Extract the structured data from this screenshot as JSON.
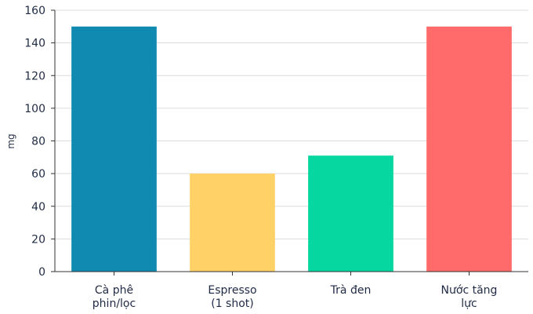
{
  "chart_data": {
    "type": "bar",
    "title": "",
    "xlabel": "",
    "ylabel": "mg",
    "categories": [
      [
        "Cà phê",
        "phin/lọc"
      ],
      [
        "Espresso",
        "(1 shot)"
      ],
      [
        "Trà đen"
      ],
      [
        "Nước tăng",
        "lực"
      ]
    ],
    "values": [
      150,
      60,
      71,
      150
    ],
    "colors": [
      "#118ab2",
      "#ffd166",
      "#06d6a0",
      "#ff6b6b"
    ],
    "ylim": [
      0,
      160
    ],
    "yticks": [
      0,
      20,
      40,
      60,
      80,
      100,
      120,
      140,
      160
    ],
    "grid": true,
    "legend": "none"
  }
}
